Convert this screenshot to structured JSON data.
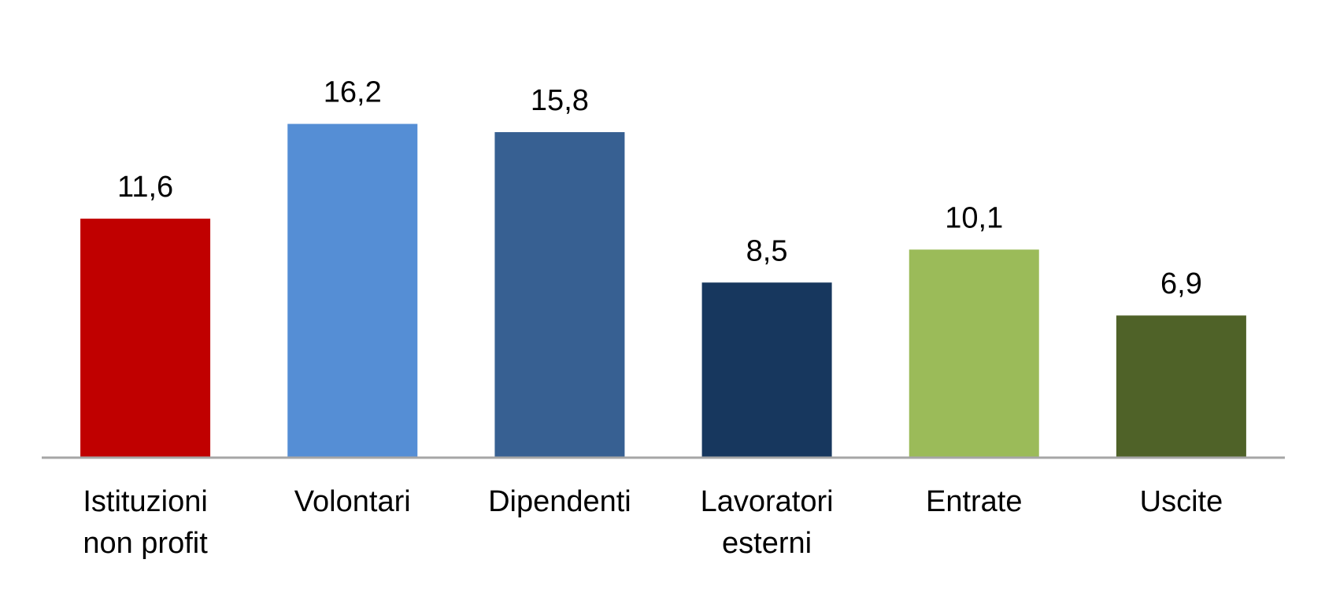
{
  "chart_data": {
    "type": "bar",
    "title": "",
    "xlabel": "",
    "ylabel": "",
    "ylim": [
      0,
      20
    ],
    "grid": false,
    "legend": "none",
    "categories": [
      "Istituzioni non profit",
      "Volontari",
      "Dipendenti",
      "Lavoratori esterni",
      "Entrate",
      "Uscite"
    ],
    "category_lines": [
      [
        "Istituzioni",
        "non profit"
      ],
      [
        "Volontari"
      ],
      [
        "Dipendenti"
      ],
      [
        "Lavoratori",
        "esterni"
      ],
      [
        "Entrate"
      ],
      [
        "Uscite"
      ]
    ],
    "values": [
      11.6,
      16.2,
      15.8,
      8.5,
      10.1,
      6.9
    ],
    "value_labels": [
      "11,6",
      "16,2",
      "15,8",
      "8,5",
      "10,1",
      "6,9"
    ],
    "colors": [
      "#C00000",
      "#558ED5",
      "#376092",
      "#17375E",
      "#9BBB59",
      "#4F6228"
    ],
    "axis_color": "#A6A6A6"
  }
}
